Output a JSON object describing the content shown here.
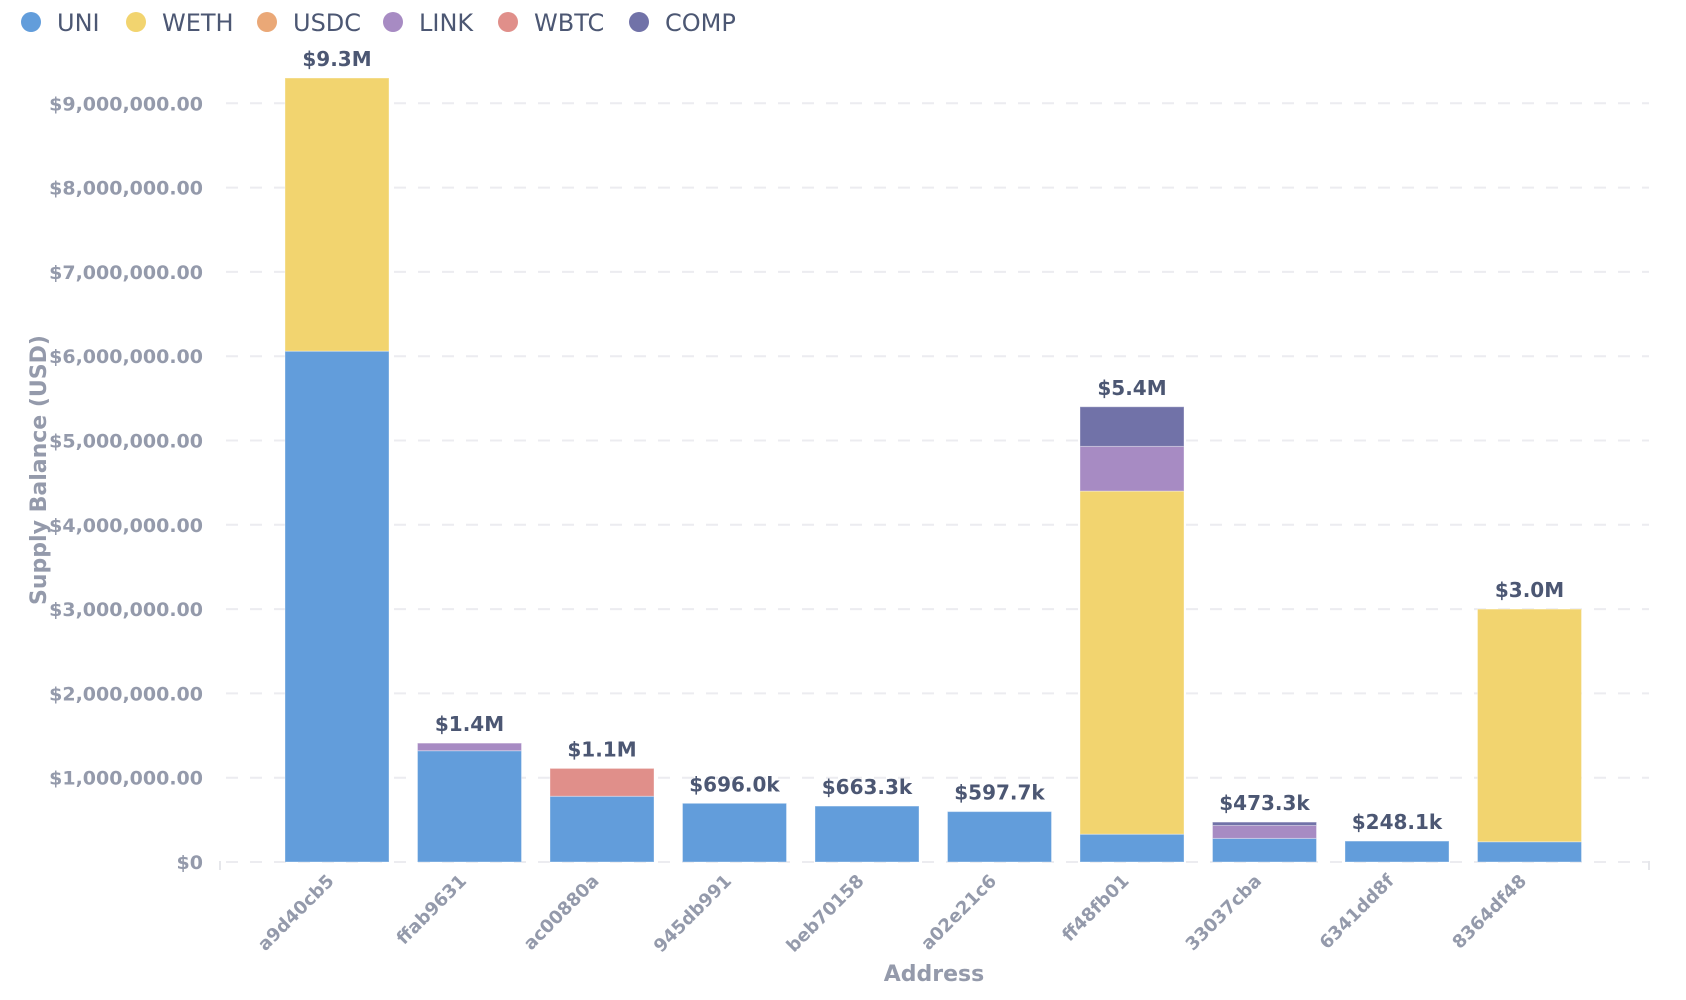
{
  "chart_data": {
    "type": "bar",
    "stacked": true,
    "xlabel": "Address",
    "ylabel": "Supply Balance (USD)",
    "ylim": [
      0,
      9500000
    ],
    "grid": true,
    "legend_position": "top-left",
    "y_ticks": [
      {
        "value": 0,
        "label": "$0"
      },
      {
        "value": 1000000,
        "label": "$1,000,000.00"
      },
      {
        "value": 2000000,
        "label": "$2,000,000.00"
      },
      {
        "value": 3000000,
        "label": "$3,000,000.00"
      },
      {
        "value": 4000000,
        "label": "$4,000,000.00"
      },
      {
        "value": 5000000,
        "label": "$5,000,000.00"
      },
      {
        "value": 6000000,
        "label": "$6,000,000.00"
      },
      {
        "value": 7000000,
        "label": "$7,000,000.00"
      },
      {
        "value": 8000000,
        "label": "$8,000,000.00"
      },
      {
        "value": 9000000,
        "label": "$9,000,000.00"
      }
    ],
    "categories": [
      "a9d40cb5",
      "ffab9631",
      "ac00880a",
      "945db991",
      "beb70158",
      "a02e21c6",
      "ff48fb01",
      "33037cba",
      "6341dd8f",
      "8364df48"
    ],
    "totals_labels": [
      "$9.3M",
      "$1.4M",
      "$1.1M",
      "$696.0k",
      "$663.3k",
      "$597.7k",
      "$5.4M",
      "$473.3k",
      "$248.1k",
      "$3.0M"
    ],
    "series": [
      {
        "name": "UNI",
        "color": "#629ddb",
        "values": [
          6060000,
          1320000,
          780000,
          696000,
          663300,
          597700,
          330000,
          280000,
          248100,
          240000
        ]
      },
      {
        "name": "WETH",
        "color": "#f2d46f",
        "values": [
          3240000,
          0,
          0,
          0,
          0,
          0,
          4070000,
          0,
          0,
          2760000
        ]
      },
      {
        "name": "USDC",
        "color": "#eaa877",
        "values": [
          0,
          0,
          0,
          0,
          0,
          0,
          0,
          0,
          0,
          0
        ]
      },
      {
        "name": "LINK",
        "color": "#a78bc3",
        "values": [
          0,
          90000,
          0,
          0,
          0,
          0,
          530000,
          153300,
          0,
          0
        ]
      },
      {
        "name": "WBTC",
        "color": "#e08f8a",
        "values": [
          0,
          0,
          330000,
          0,
          0,
          0,
          0,
          0,
          0,
          0
        ]
      },
      {
        "name": "COMP",
        "color": "#7172a8",
        "values": [
          0,
          0,
          0,
          0,
          0,
          0,
          470000,
          40000,
          0,
          0
        ]
      }
    ]
  }
}
